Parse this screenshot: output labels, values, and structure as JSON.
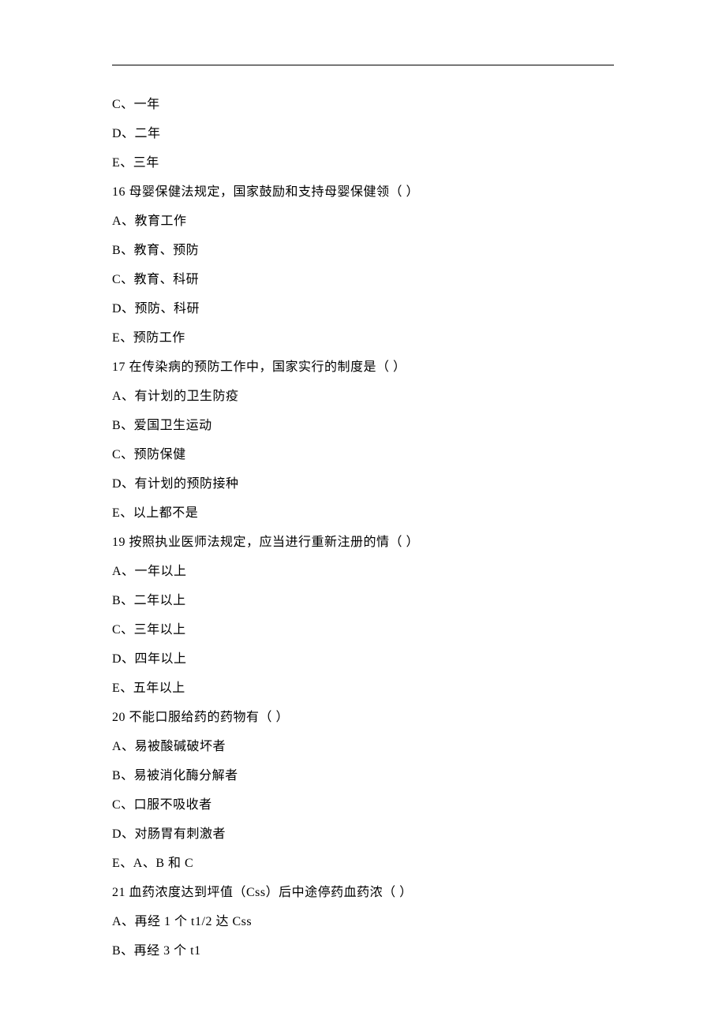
{
  "lines": [
    "C、一年",
    "D、二年",
    "E、三年",
    "16 母婴保健法规定，国家鼓励和支持母婴保健领（  ）",
    "A、教育工作",
    "B、教育、预防",
    "C、教育、科研",
    "D、预防、科研",
    "E、预防工作",
    "17 在传染病的预防工作中，国家实行的制度是（  ）",
    "A、有计划的卫生防疫",
    "B、爱国卫生运动",
    "C、预防保健",
    "D、有计划的预防接种",
    "E、以上都不是",
    "19 按照执业医师法规定，应当进行重新注册的情（  ）",
    "A、一年以上",
    "B、二年以上",
    "C、三年以上",
    "D、四年以上",
    "E、五年以上",
    "20 不能口服给药的药物有（  ）",
    "A、易被酸碱破坏者",
    "B、易被消化酶分解者",
    "C、口服不吸收者",
    "D、对肠胃有刺激者",
    "E、A、B 和 C",
    "21 血药浓度达到坪值（Css）后中途停药血药浓（  ）",
    "A、再经 1 个 t1/2 达 Css",
    "B、再经 3 个 t1"
  ]
}
